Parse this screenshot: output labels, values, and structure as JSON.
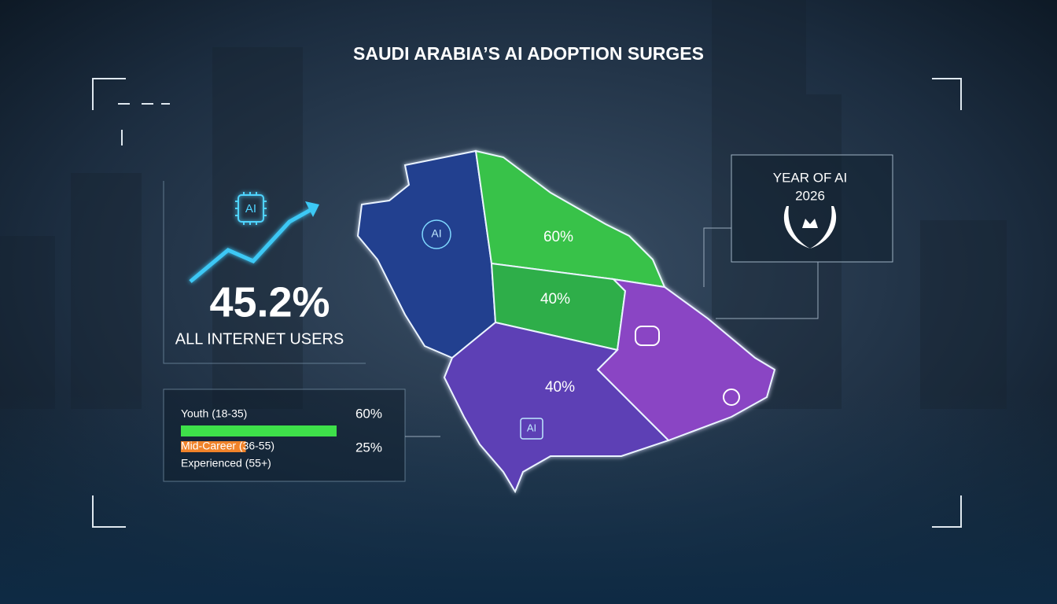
{
  "title": "SAUDI ARABIA’S AI ADOPTION SURGES",
  "left_panel": {
    "icon": "AI",
    "stat": "45.2%",
    "caption": "ALL INTERNET USERS"
  },
  "age_bars": [
    {
      "label": "Youth (18-35)",
      "value": 60,
      "value_label": "60%"
    },
    {
      "label": "Mid-Career (36-55)",
      "value": 25,
      "value_label": "25%"
    },
    {
      "label": "Experienced (55+)"
    }
  ],
  "map": {
    "regions": [
      {
        "label": "60%"
      },
      {
        "label": "40%"
      },
      {
        "label": "40%"
      }
    ],
    "icons": [
      "AI",
      "AI"
    ]
  },
  "badge": {
    "line1": "YEAR OF AI",
    "line2": "2026"
  }
}
